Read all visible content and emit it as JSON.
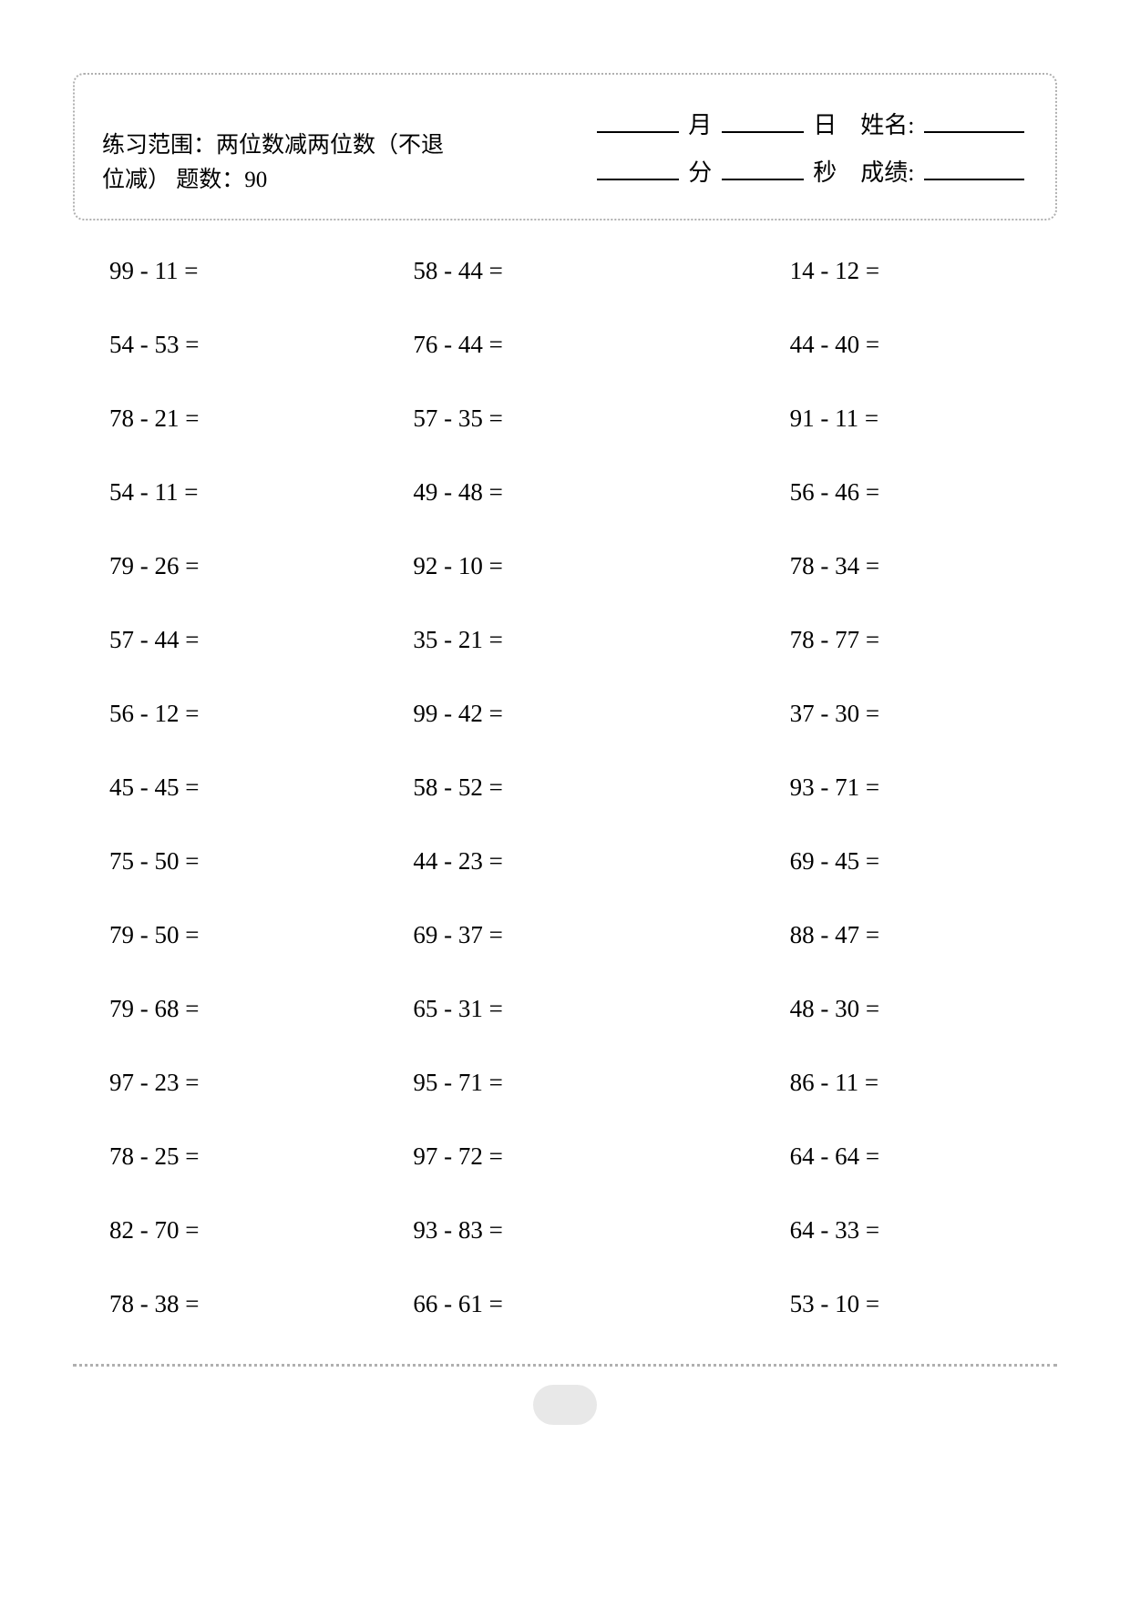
{
  "header": {
    "subtitle": "练习范围：两位数减两位数（不退位减） 题数：90",
    "month_label": "月",
    "day_label": "日",
    "name_label": "姓名:",
    "minute_label": "分",
    "second_label": "秒",
    "score_label": "成绩:"
  },
  "style": {
    "page_bg": "#ffffff",
    "border_color": "#b0b0b0",
    "text_color": "#000000",
    "problem_fontsize": 27,
    "header_fontsize": 25,
    "page_number_bg": "#e8e8e8"
  },
  "problems": {
    "columns": 3,
    "rows": [
      [
        "99 - 11 =",
        "58 - 44 =",
        "14 - 12 ="
      ],
      [
        "54 - 53 =",
        "76 - 44 =",
        "44 - 40 ="
      ],
      [
        "78 - 21 =",
        "57 - 35 =",
        "91 - 11 ="
      ],
      [
        "54 - 11 =",
        "49 - 48 =",
        "56 - 46 ="
      ],
      [
        "79 - 26 =",
        "92 - 10 =",
        "78 - 34 ="
      ],
      [
        "57 - 44 =",
        "35 - 21 =",
        "78 - 77 ="
      ],
      [
        "56 - 12 =",
        "99 - 42 =",
        "37 - 30 ="
      ],
      [
        "45 - 45 =",
        "58 - 52 =",
        "93 - 71 ="
      ],
      [
        "75 - 50 =",
        "44 - 23 =",
        "69 - 45 ="
      ],
      [
        "79 - 50 =",
        "69 - 37 =",
        "88 - 47 ="
      ],
      [
        "79 - 68 =",
        "65 - 31 =",
        "48 - 30 ="
      ],
      [
        "97 - 23 =",
        "95 - 71 =",
        "86 - 11 ="
      ],
      [
        "78 - 25 =",
        "97 - 72 =",
        "64 - 64 ="
      ],
      [
        "82 - 70 =",
        "93 - 83 =",
        "64 - 33 ="
      ],
      [
        "78 - 38 =",
        "66 - 61 =",
        "53 - 10 ="
      ]
    ]
  }
}
